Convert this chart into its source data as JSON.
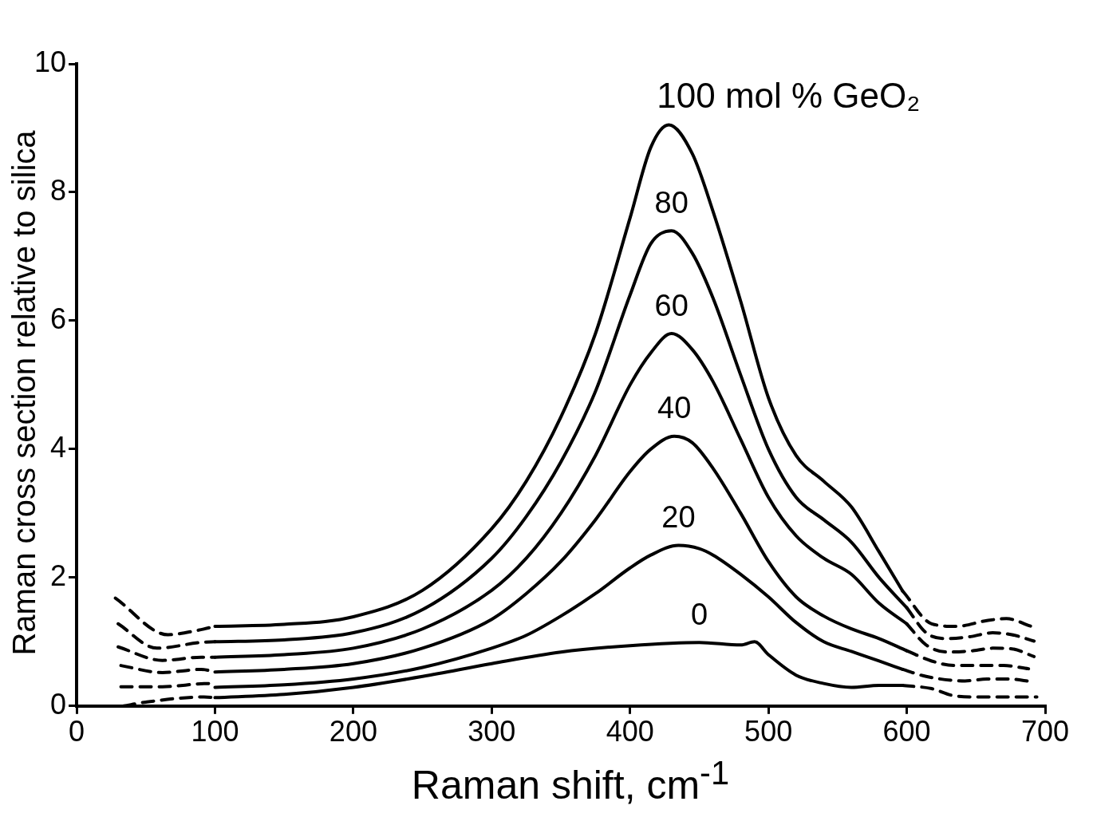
{
  "chart_data": {
    "type": "line",
    "xlabel": "Raman shift, cm$^{-1}$",
    "ylabel": "Raman cross section relative to silica",
    "xlim": [
      0,
      700
    ],
    "xticks": [
      0,
      100,
      200,
      300,
      400,
      500,
      600,
      700
    ],
    "ylim": [
      0,
      10
    ],
    "yticks": [
      0,
      2,
      4,
      6,
      8,
      10
    ],
    "grid": false,
    "legend": false,
    "marker": "none",
    "series": [
      {
        "name": "100 mol % GeO₂",
        "color": "#000000",
        "line_style": "solid",
        "x": [
          100,
          150,
          200,
          250,
          300,
          325,
          350,
          375,
          400,
          415,
          428,
          445,
          460,
          480,
          500,
          520,
          540,
          560,
          580,
          597
        ],
        "values": [
          1.24,
          1.27,
          1.39,
          1.8,
          2.76,
          3.5,
          4.5,
          5.8,
          7.6,
          8.7,
          9.05,
          8.6,
          7.7,
          6.3,
          4.8,
          3.9,
          3.5,
          3.1,
          2.4,
          1.79
        ]
      },
      {
        "color": "#000000",
        "line_style": "dashed",
        "x": [
          28,
          66,
          88,
          100,
          350,
          597,
          618,
          636,
          658,
          672,
          690
        ],
        "values": [
          1.68,
          1.11,
          1.18,
          1.24,
          null,
          1.79,
          1.28,
          1.24,
          1.33,
          1.36,
          1.24
        ]
      },
      {
        "name": "80",
        "color": "#000000",
        "line_style": "solid",
        "x": [
          100,
          150,
          200,
          250,
          300,
          325,
          350,
          375,
          400,
          415,
          430,
          445,
          460,
          480,
          500,
          520,
          540,
          560,
          580,
          600
        ],
        "values": [
          1.0,
          1.03,
          1.14,
          1.5,
          2.3,
          2.95,
          3.8,
          4.9,
          6.4,
          7.2,
          7.4,
          7.05,
          6.35,
          5.15,
          4.0,
          3.25,
          2.9,
          2.55,
          2.0,
          1.53
        ]
      },
      {
        "color": "#000000",
        "line_style": "dashed",
        "x": [
          30,
          58,
          90,
          100,
          350,
          600,
          614,
          628,
          646,
          662,
          676,
          692
        ],
        "values": [
          1.28,
          0.9,
          0.99,
          1.0,
          null,
          1.53,
          1.14,
          1.05,
          1.08,
          1.14,
          1.11,
          1.01
        ]
      },
      {
        "name": "60",
        "color": "#000000",
        "line_style": "solid",
        "x": [
          100,
          150,
          200,
          250,
          300,
          325,
          350,
          375,
          400,
          415,
          430,
          445,
          460,
          480,
          500,
          520,
          540,
          560,
          580,
          600
        ],
        "values": [
          0.76,
          0.8,
          0.9,
          1.2,
          1.8,
          2.3,
          3.0,
          3.9,
          5.0,
          5.5,
          5.8,
          5.55,
          5.05,
          4.15,
          3.25,
          2.65,
          2.3,
          2.05,
          1.6,
          1.28
        ]
      },
      {
        "color": "#000000",
        "line_style": "dashed",
        "x": [
          30,
          62,
          90,
          100,
          350,
          600,
          614,
          630,
          648,
          662,
          676,
          692
        ],
        "values": [
          0.92,
          0.71,
          0.76,
          0.76,
          null,
          1.28,
          0.95,
          0.84,
          0.86,
          0.9,
          0.89,
          0.77
        ]
      },
      {
        "name": "40",
        "color": "#000000",
        "line_style": "solid",
        "x": [
          100,
          150,
          200,
          250,
          300,
          325,
          350,
          375,
          400,
          415,
          432,
          445,
          460,
          480,
          500,
          520,
          540,
          560,
          580,
          600
        ],
        "values": [
          0.53,
          0.57,
          0.66,
          0.9,
          1.35,
          1.75,
          2.25,
          2.9,
          3.65,
          4.0,
          4.2,
          4.1,
          3.7,
          3.0,
          2.25,
          1.7,
          1.4,
          1.2,
          1.05,
          0.86
        ]
      },
      {
        "color": "#000000",
        "line_style": "dashed",
        "x": [
          32,
          62,
          90,
          100,
          350,
          600,
          618,
          634,
          654,
          670,
          688
        ],
        "values": [
          0.63,
          0.52,
          0.57,
          0.53,
          null,
          0.86,
          0.7,
          0.63,
          0.63,
          0.63,
          0.58
        ]
      },
      {
        "name": "20",
        "color": "#000000",
        "line_style": "solid",
        "x": [
          100,
          150,
          200,
          250,
          300,
          325,
          350,
          375,
          400,
          415,
          435,
          450,
          460,
          480,
          500,
          520,
          540,
          560,
          580,
          597
        ],
        "values": [
          0.29,
          0.33,
          0.42,
          0.6,
          0.9,
          1.1,
          1.4,
          1.75,
          2.15,
          2.35,
          2.5,
          2.45,
          2.35,
          2.05,
          1.7,
          1.3,
          1.0,
          0.85,
          0.7,
          0.57
        ]
      },
      {
        "color": "#000000",
        "line_style": "dashed",
        "x": [
          32,
          62,
          95,
          100,
          350,
          597,
          614,
          642,
          658,
          674,
          690
        ],
        "values": [
          0.3,
          0.3,
          0.35,
          0.29,
          null,
          0.57,
          0.46,
          0.39,
          0.42,
          0.42,
          0.38
        ]
      },
      {
        "name": "0",
        "color": "#000000",
        "line_style": "solid",
        "x": [
          100,
          150,
          200,
          250,
          300,
          350,
          400,
          450,
          480,
          490,
          500,
          520,
          540,
          560,
          580,
          597
        ],
        "values": [
          0.13,
          0.18,
          0.29,
          0.46,
          0.66,
          0.84,
          0.94,
          0.99,
          0.95,
          1.0,
          0.8,
          0.48,
          0.35,
          0.29,
          0.32,
          0.32
        ]
      },
      {
        "color": "#000000",
        "line_style": "dashed",
        "x": [
          34,
          50,
          92,
          100,
          350,
          597,
          618,
          634,
          652,
          676,
          694
        ],
        "values": [
          0.0,
          0.06,
          0.14,
          0.13,
          null,
          0.32,
          0.27,
          0.16,
          0.14,
          0.14,
          0.14
        ]
      }
    ]
  }
}
